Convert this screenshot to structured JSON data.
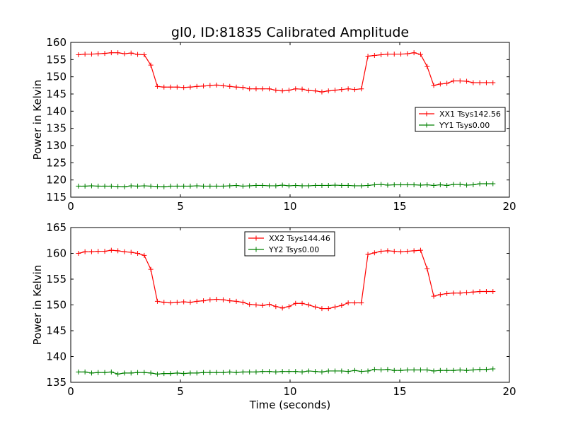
{
  "chart_data": [
    {
      "type": "line",
      "title": "gl0, ID:81835 Calibrated Amplitude",
      "xlabel": "",
      "ylabel": "Power in Kelvin",
      "xlim": [
        0,
        20
      ],
      "ylim": [
        115,
        160
      ],
      "xticks": [
        0,
        5,
        10,
        15,
        20
      ],
      "yticks": [
        115,
        120,
        125,
        130,
        135,
        140,
        145,
        150,
        155,
        160
      ],
      "legend_position": "center-right",
      "x": [
        0.35,
        0.65,
        0.95,
        1.25,
        1.55,
        1.85,
        2.15,
        2.45,
        2.75,
        3.05,
        3.35,
        3.65,
        3.95,
        4.25,
        4.55,
        4.85,
        5.15,
        5.45,
        5.75,
        6.05,
        6.35,
        6.65,
        6.95,
        7.25,
        7.55,
        7.85,
        8.15,
        8.45,
        8.75,
        9.05,
        9.35,
        9.65,
        9.95,
        10.25,
        10.55,
        10.85,
        11.15,
        11.45,
        11.75,
        12.05,
        12.35,
        12.65,
        12.95,
        13.25,
        13.55,
        13.85,
        14.15,
        14.45,
        14.75,
        15.05,
        15.35,
        15.65,
        15.95,
        16.25,
        16.55,
        16.85,
        17.15,
        17.45,
        17.75,
        18.05,
        18.35,
        18.65,
        18.95,
        19.25
      ],
      "series": [
        {
          "name": "XX1 Tsys142.56",
          "color": "#ff0000",
          "values": [
            156.4,
            156.6,
            156.6,
            156.7,
            156.8,
            157.0,
            157.0,
            156.7,
            156.9,
            156.5,
            156.4,
            153.4,
            147.2,
            147.0,
            147.0,
            147.0,
            146.9,
            147.0,
            147.2,
            147.3,
            147.5,
            147.6,
            147.4,
            147.2,
            147.0,
            146.9,
            146.5,
            146.5,
            146.5,
            146.5,
            146.1,
            145.9,
            146.1,
            146.5,
            146.4,
            146.0,
            145.9,
            145.6,
            145.9,
            146.1,
            146.3,
            146.5,
            146.3,
            146.5,
            156.0,
            156.2,
            156.4,
            156.6,
            156.6,
            156.6,
            156.7,
            157.0,
            156.5,
            153.0,
            147.5,
            147.9,
            148.1,
            148.8,
            148.8,
            148.7,
            148.3,
            148.3,
            148.3,
            148.3
          ]
        },
        {
          "name": "YY1 Tsys0.00",
          "color": "#008000",
          "values": [
            118.2,
            118.2,
            118.3,
            118.2,
            118.2,
            118.2,
            118.1,
            118.0,
            118.3,
            118.2,
            118.3,
            118.2,
            118.1,
            118.0,
            118.2,
            118.2,
            118.2,
            118.2,
            118.3,
            118.2,
            118.2,
            118.2,
            118.2,
            118.3,
            118.4,
            118.2,
            118.3,
            118.4,
            118.4,
            118.3,
            118.3,
            118.5,
            118.3,
            118.4,
            118.3,
            118.3,
            118.4,
            118.4,
            118.4,
            118.5,
            118.4,
            118.4,
            118.3,
            118.3,
            118.4,
            118.6,
            118.7,
            118.5,
            118.6,
            118.6,
            118.6,
            118.6,
            118.5,
            118.6,
            118.4,
            118.6,
            118.4,
            118.7,
            118.7,
            118.5,
            118.6,
            118.9,
            118.9,
            118.9
          ]
        }
      ]
    },
    {
      "type": "line",
      "title": "",
      "xlabel": "Time (seconds)",
      "ylabel": "Power in Kelvin",
      "xlim": [
        0,
        20
      ],
      "ylim": [
        135,
        165
      ],
      "xticks": [
        0,
        5,
        10,
        15,
        20
      ],
      "yticks": [
        135,
        140,
        145,
        150,
        155,
        160,
        165
      ],
      "legend_position": "top-center",
      "x": [
        0.35,
        0.65,
        0.95,
        1.25,
        1.55,
        1.85,
        2.15,
        2.45,
        2.75,
        3.05,
        3.35,
        3.65,
        3.95,
        4.25,
        4.55,
        4.85,
        5.15,
        5.45,
        5.75,
        6.05,
        6.35,
        6.65,
        6.95,
        7.25,
        7.55,
        7.85,
        8.15,
        8.45,
        8.75,
        9.05,
        9.35,
        9.65,
        9.95,
        10.25,
        10.55,
        10.85,
        11.15,
        11.45,
        11.75,
        12.05,
        12.35,
        12.65,
        12.95,
        13.25,
        13.55,
        13.85,
        14.15,
        14.45,
        14.75,
        15.05,
        15.35,
        15.65,
        15.95,
        16.25,
        16.55,
        16.85,
        17.15,
        17.45,
        17.75,
        18.05,
        18.35,
        18.65,
        18.95,
        19.25
      ],
      "series": [
        {
          "name": "XX2 Tsys144.46",
          "color": "#ff0000",
          "values": [
            160.0,
            160.3,
            160.3,
            160.4,
            160.4,
            160.6,
            160.5,
            160.3,
            160.2,
            160.0,
            159.6,
            156.9,
            150.7,
            150.5,
            150.4,
            150.5,
            150.6,
            150.5,
            150.7,
            150.8,
            151.0,
            151.1,
            151.0,
            150.8,
            150.7,
            150.5,
            150.1,
            150.0,
            149.9,
            150.1,
            149.7,
            149.4,
            149.7,
            150.3,
            150.3,
            150.0,
            149.6,
            149.3,
            149.3,
            149.6,
            149.9,
            150.4,
            150.4,
            150.4,
            159.8,
            160.1,
            160.4,
            160.5,
            160.4,
            160.3,
            160.4,
            160.5,
            160.6,
            157.0,
            151.7,
            152.0,
            152.2,
            152.3,
            152.3,
            152.4,
            152.5,
            152.6,
            152.6,
            152.6
          ]
        },
        {
          "name": "YY2 Tsys0.00",
          "color": "#008000",
          "values": [
            137.0,
            137.0,
            136.8,
            136.9,
            136.9,
            137.0,
            136.6,
            136.8,
            136.8,
            136.9,
            136.9,
            136.8,
            136.6,
            136.7,
            136.7,
            136.8,
            136.7,
            136.8,
            136.8,
            136.9,
            136.9,
            136.9,
            136.9,
            137.0,
            136.9,
            137.0,
            137.0,
            137.0,
            137.1,
            137.1,
            137.0,
            137.1,
            137.1,
            137.1,
            137.0,
            137.2,
            137.1,
            137.0,
            137.2,
            137.2,
            137.2,
            137.1,
            137.3,
            137.1,
            137.2,
            137.5,
            137.4,
            137.5,
            137.3,
            137.3,
            137.4,
            137.4,
            137.4,
            137.4,
            137.2,
            137.3,
            137.3,
            137.3,
            137.4,
            137.3,
            137.4,
            137.5,
            137.5,
            137.6
          ]
        }
      ]
    }
  ]
}
